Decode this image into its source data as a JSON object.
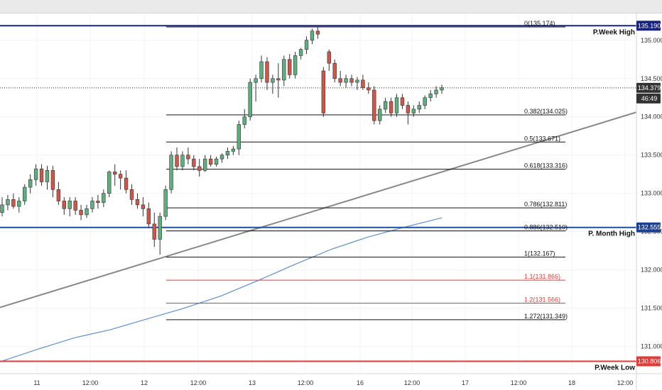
{
  "chart_data": {
    "type": "candlestick",
    "y_axis": {
      "min": 130.7,
      "max": 135.35,
      "ticks": [
        "135.000",
        "134.500",
        "134.000",
        "133.500",
        "133.000",
        "132.500",
        "132.000",
        "131.500",
        "131.000"
      ]
    },
    "x_axis": {
      "ticks": [
        "11",
        "12:00",
        "12",
        "12:00",
        "13",
        "12:00",
        "16",
        "12:00",
        "17",
        "12:00",
        "18",
        "12:00"
      ]
    },
    "price_tags": [
      {
        "label": "135.190",
        "value": 135.19,
        "color": "#1a237e"
      },
      {
        "label": "134.379",
        "value": 134.379,
        "color": "#333333"
      },
      {
        "label": "46:49",
        "value": 134.24,
        "color": "#333333"
      },
      {
        "label": "132.555",
        "value": 132.555,
        "color": "#1e3f8f"
      },
      {
        "label": "130.806",
        "value": 130.806,
        "color": "#e53935"
      }
    ],
    "horizontal_levels": [
      {
        "name": "P.Week High",
        "value": 135.19,
        "color": "#1a237e"
      },
      {
        "name": "P. Month High",
        "value": 132.555,
        "color": "#1e4fa0"
      },
      {
        "name": "P.Week Low",
        "value": 130.806,
        "color": "#e53935"
      }
    ],
    "fibonacci": [
      {
        "label": "0(135.174)",
        "value": 135.174,
        "color": "#111111"
      },
      {
        "label": "0.382(134.025)",
        "value": 134.025,
        "color": "#111111"
      },
      {
        "label": "0.5(133.671)",
        "value": 133.671,
        "color": "#111111"
      },
      {
        "label": "0.618(133.316)",
        "value": 133.316,
        "color": "#111111"
      },
      {
        "label": "0.786(132.811)",
        "value": 132.811,
        "color": "#111111"
      },
      {
        "label": "0.886(132.510)",
        "value": 132.51,
        "color": "#111111"
      },
      {
        "label": "1(132.167)",
        "value": 132.167,
        "color": "#111111"
      },
      {
        "label": "1.1(131.866)",
        "value": 131.866,
        "color": "#e53935"
      },
      {
        "label": "1.2(131.566)",
        "value": 131.566,
        "color": "#e53935"
      },
      {
        "label": "1.272(131.349)",
        "value": 131.349,
        "color": "#111111"
      }
    ],
    "current_price": 134.379,
    "trendline": {
      "from": 131.51,
      "to": 134.06,
      "color": "#888888"
    },
    "moving_average_color": "#5b8fd4",
    "moving_average": [
      130.8,
      130.96,
      131.11,
      131.22,
      131.36,
      131.5,
      131.66,
      131.86,
      132.07,
      132.27,
      132.43,
      132.56,
      132.68
    ],
    "candle_colors": {
      "up": "#5fae7e",
      "down": "#d0564a"
    },
    "candles": [
      {
        "o": 132.75,
        "h": 132.95,
        "l": 132.7,
        "c": 132.85
      },
      {
        "o": 132.85,
        "h": 132.98,
        "l": 132.78,
        "c": 132.92
      },
      {
        "o": 132.92,
        "h": 133.0,
        "l": 132.8,
        "c": 132.83
      },
      {
        "o": 132.83,
        "h": 132.95,
        "l": 132.75,
        "c": 132.9
      },
      {
        "o": 132.9,
        "h": 133.12,
        "l": 132.85,
        "c": 133.08
      },
      {
        "o": 133.08,
        "h": 133.25,
        "l": 133.0,
        "c": 133.18
      },
      {
        "o": 133.18,
        "h": 133.38,
        "l": 133.1,
        "c": 133.32
      },
      {
        "o": 133.32,
        "h": 133.38,
        "l": 133.1,
        "c": 133.15
      },
      {
        "o": 133.15,
        "h": 133.36,
        "l": 133.05,
        "c": 133.3
      },
      {
        "o": 133.3,
        "h": 133.36,
        "l": 132.95,
        "c": 133.05
      },
      {
        "o": 133.05,
        "h": 133.15,
        "l": 132.85,
        "c": 132.9
      },
      {
        "o": 132.9,
        "h": 132.95,
        "l": 132.72,
        "c": 132.8
      },
      {
        "o": 132.8,
        "h": 132.95,
        "l": 132.7,
        "c": 132.9
      },
      {
        "o": 132.9,
        "h": 132.95,
        "l": 132.72,
        "c": 132.78
      },
      {
        "o": 132.78,
        "h": 132.85,
        "l": 132.65,
        "c": 132.72
      },
      {
        "o": 132.72,
        "h": 132.85,
        "l": 132.68,
        "c": 132.8
      },
      {
        "o": 132.8,
        "h": 132.95,
        "l": 132.75,
        "c": 132.9
      },
      {
        "o": 132.9,
        "h": 132.98,
        "l": 132.8,
        "c": 132.88
      },
      {
        "o": 132.88,
        "h": 133.05,
        "l": 132.82,
        "c": 133.0
      },
      {
        "o": 133.0,
        "h": 133.3,
        "l": 132.95,
        "c": 133.28
      },
      {
        "o": 133.28,
        "h": 133.38,
        "l": 133.1,
        "c": 133.25
      },
      {
        "o": 133.25,
        "h": 133.3,
        "l": 133.05,
        "c": 133.2
      },
      {
        "o": 133.2,
        "h": 133.3,
        "l": 133.0,
        "c": 133.05
      },
      {
        "o": 133.05,
        "h": 133.12,
        "l": 132.85,
        "c": 132.92
      },
      {
        "o": 132.92,
        "h": 133.0,
        "l": 132.8,
        "c": 132.85
      },
      {
        "o": 132.85,
        "h": 132.95,
        "l": 132.7,
        "c": 132.8
      },
      {
        "o": 132.8,
        "h": 132.88,
        "l": 132.55,
        "c": 132.6
      },
      {
        "o": 132.6,
        "h": 132.75,
        "l": 132.3,
        "c": 132.4
      },
      {
        "o": 132.4,
        "h": 132.75,
        "l": 132.2,
        "c": 132.7
      },
      {
        "o": 132.7,
        "h": 133.1,
        "l": 132.65,
        "c": 133.05
      },
      {
        "o": 133.05,
        "h": 133.55,
        "l": 133.0,
        "c": 133.5
      },
      {
        "o": 133.5,
        "h": 133.6,
        "l": 133.3,
        "c": 133.35
      },
      {
        "o": 133.35,
        "h": 133.55,
        "l": 133.3,
        "c": 133.5
      },
      {
        "o": 133.5,
        "h": 133.6,
        "l": 133.38,
        "c": 133.45
      },
      {
        "o": 133.45,
        "h": 133.5,
        "l": 133.3,
        "c": 133.35
      },
      {
        "o": 133.35,
        "h": 133.45,
        "l": 133.22,
        "c": 133.3
      },
      {
        "o": 133.3,
        "h": 133.5,
        "l": 133.28,
        "c": 133.45
      },
      {
        "o": 133.45,
        "h": 133.5,
        "l": 133.35,
        "c": 133.38
      },
      {
        "o": 133.38,
        "h": 133.48,
        "l": 133.35,
        "c": 133.45
      },
      {
        "o": 133.45,
        "h": 133.52,
        "l": 133.4,
        "c": 133.5
      },
      {
        "o": 133.5,
        "h": 133.6,
        "l": 133.45,
        "c": 133.55
      },
      {
        "o": 133.55,
        "h": 133.62,
        "l": 133.5,
        "c": 133.58
      },
      {
        "o": 133.58,
        "h": 133.95,
        "l": 133.5,
        "c": 133.9
      },
      {
        "o": 133.9,
        "h": 134.1,
        "l": 133.85,
        "c": 134.0
      },
      {
        "o": 134.0,
        "h": 134.5,
        "l": 133.95,
        "c": 134.45
      },
      {
        "o": 134.45,
        "h": 134.55,
        "l": 134.2,
        "c": 134.5
      },
      {
        "o": 134.5,
        "h": 134.8,
        "l": 134.45,
        "c": 134.72
      },
      {
        "o": 134.72,
        "h": 134.78,
        "l": 134.35,
        "c": 134.45
      },
      {
        "o": 134.45,
        "h": 134.55,
        "l": 134.3,
        "c": 134.5
      },
      {
        "o": 134.5,
        "h": 134.7,
        "l": 134.25,
        "c": 134.48
      },
      {
        "o": 134.48,
        "h": 134.8,
        "l": 134.4,
        "c": 134.75
      },
      {
        "o": 134.75,
        "h": 134.82,
        "l": 134.5,
        "c": 134.55
      },
      {
        "o": 134.55,
        "h": 134.85,
        "l": 134.5,
        "c": 134.8
      },
      {
        "o": 134.8,
        "h": 134.9,
        "l": 134.75,
        "c": 134.88
      },
      {
        "o": 134.88,
        "h": 135.05,
        "l": 134.82,
        "c": 135.0
      },
      {
        "o": 135.0,
        "h": 135.15,
        "l": 134.95,
        "c": 135.12
      },
      {
        "o": 135.12,
        "h": 135.18,
        "l": 135.02,
        "c": 135.08
      },
      {
        "o": 134.6,
        "h": 134.65,
        "l": 134.0,
        "c": 134.05
      },
      {
        "o": 134.85,
        "h": 134.88,
        "l": 134.6,
        "c": 134.7
      },
      {
        "o": 134.7,
        "h": 134.75,
        "l": 134.45,
        "c": 134.5
      },
      {
        "o": 134.5,
        "h": 134.6,
        "l": 134.4,
        "c": 134.45
      },
      {
        "o": 134.45,
        "h": 134.55,
        "l": 134.38,
        "c": 134.5
      },
      {
        "o": 134.5,
        "h": 134.55,
        "l": 134.4,
        "c": 134.45
      },
      {
        "o": 134.45,
        "h": 134.52,
        "l": 134.35,
        "c": 134.48
      },
      {
        "o": 134.48,
        "h": 134.55,
        "l": 134.35,
        "c": 134.38
      },
      {
        "o": 134.38,
        "h": 134.45,
        "l": 134.3,
        "c": 134.35
      },
      {
        "o": 134.35,
        "h": 134.4,
        "l": 133.9,
        "c": 133.95
      },
      {
        "o": 133.95,
        "h": 134.15,
        "l": 133.9,
        "c": 134.1
      },
      {
        "o": 134.1,
        "h": 134.25,
        "l": 134.05,
        "c": 134.2
      },
      {
        "o": 134.2,
        "h": 134.25,
        "l": 134.0,
        "c": 134.05
      },
      {
        "o": 134.05,
        "h": 134.3,
        "l": 134.0,
        "c": 134.25
      },
      {
        "o": 134.25,
        "h": 134.3,
        "l": 134.1,
        "c": 134.15
      },
      {
        "o": 134.15,
        "h": 134.2,
        "l": 133.9,
        "c": 134.05
      },
      {
        "o": 134.05,
        "h": 134.15,
        "l": 134.0,
        "c": 134.1
      },
      {
        "o": 134.1,
        "h": 134.2,
        "l": 134.05,
        "c": 134.15
      },
      {
        "o": 134.15,
        "h": 134.28,
        "l": 134.1,
        "c": 134.25
      },
      {
        "o": 134.25,
        "h": 134.35,
        "l": 134.2,
        "c": 134.3
      },
      {
        "o": 134.3,
        "h": 134.4,
        "l": 134.25,
        "c": 134.35
      },
      {
        "o": 134.35,
        "h": 134.42,
        "l": 134.3,
        "c": 134.38
      }
    ]
  }
}
